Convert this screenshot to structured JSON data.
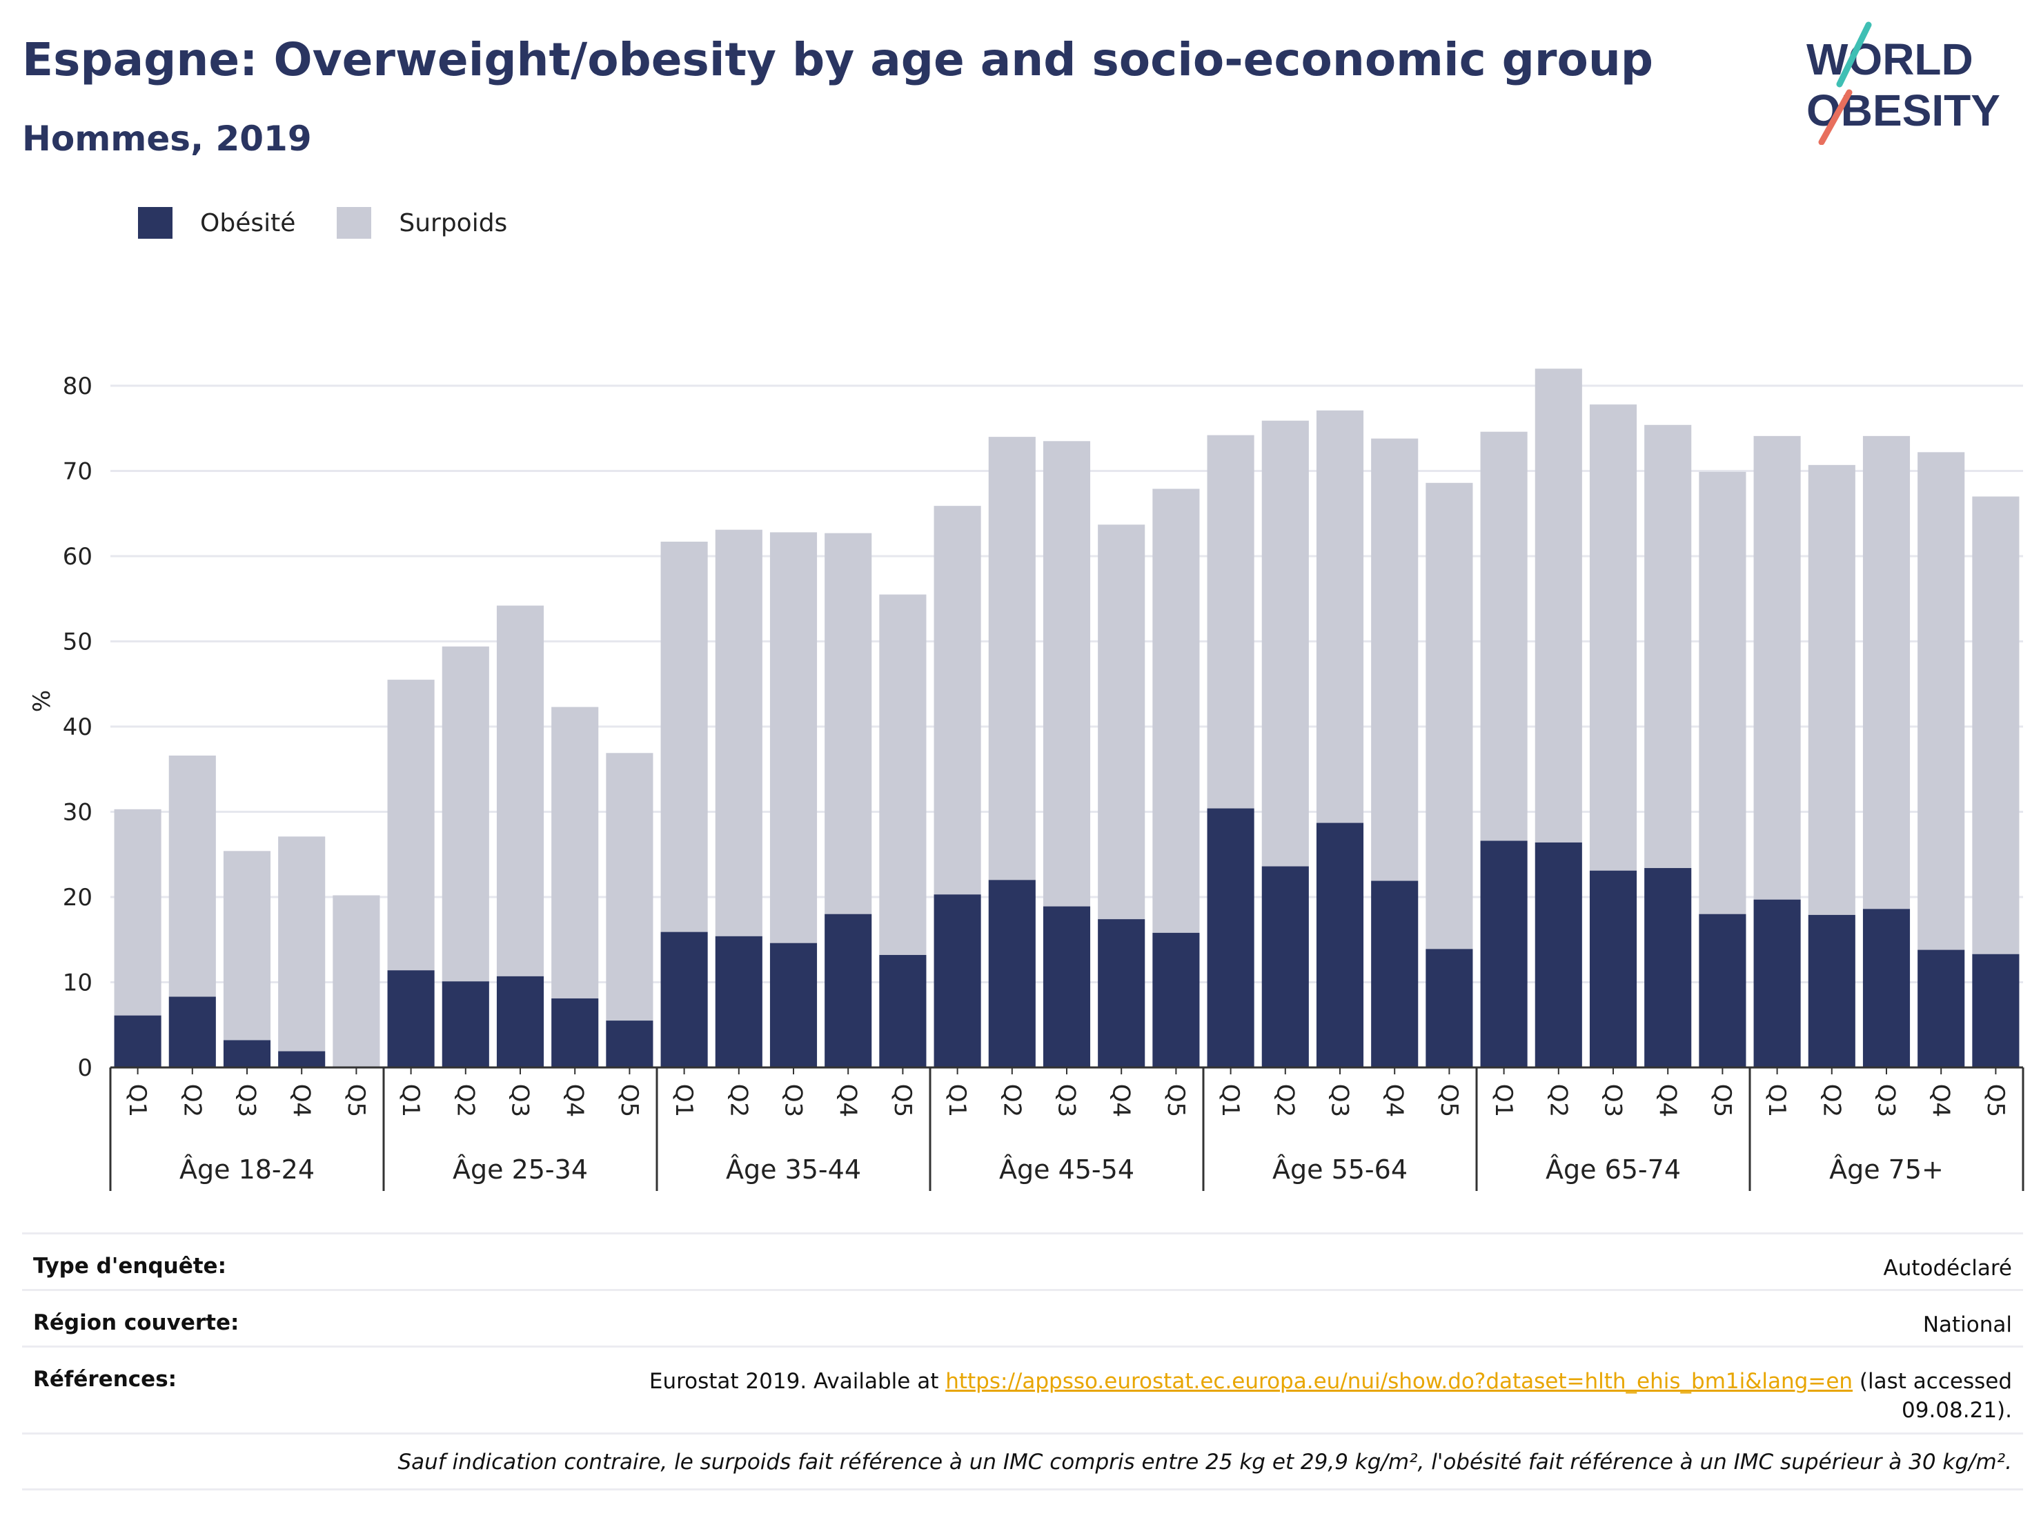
{
  "header": {
    "title": "Espagne: Overweight/obesity by age and socio-economic group",
    "subtitle": "Hommes, 2019"
  },
  "logo": {
    "line1": "WORLD",
    "line2": "OBESITY"
  },
  "colors": {
    "obesity": "#2a3561",
    "overweight": "#c9cbd6",
    "grid": "#e6e7ee",
    "axis": "#333333",
    "link": "#e8a500"
  },
  "chart_data": {
    "type": "bar",
    "stacked": true,
    "ylabel": "%",
    "ylim": [
      0,
      85
    ],
    "yticks": [
      0,
      10,
      20,
      30,
      40,
      50,
      60,
      70,
      80
    ],
    "grid": true,
    "legend_position": "top-left",
    "groups": [
      "Âge 18-24",
      "Âge 25-34",
      "Âge 35-44",
      "Âge 45-54",
      "Âge 55-64",
      "Âge 65-74",
      "Âge 75+"
    ],
    "quintiles": [
      "Q1",
      "Q2",
      "Q3",
      "Q4",
      "Q5"
    ],
    "series": [
      {
        "name": "Obésité",
        "values": [
          6.1,
          8.3,
          3.2,
          1.9,
          0,
          11.4,
          10.1,
          10.7,
          8.1,
          5.5,
          15.9,
          15.4,
          14.6,
          18.0,
          13.2,
          20.3,
          22.0,
          18.9,
          17.4,
          15.8,
          30.4,
          23.6,
          28.7,
          21.9,
          13.9,
          26.6,
          26.4,
          23.1,
          23.4,
          18.0,
          19.7,
          17.9,
          18.6,
          13.8,
          13.3
        ]
      },
      {
        "name": "Surpoids",
        "values": [
          24.2,
          28.3,
          22.2,
          25.2,
          20.2,
          34.1,
          39.3,
          43.5,
          34.2,
          31.4,
          45.8,
          47.7,
          48.2,
          44.7,
          42.3,
          45.6,
          52.0,
          54.6,
          46.3,
          52.1,
          43.8,
          52.3,
          48.4,
          51.9,
          54.7,
          48.0,
          55.6,
          54.7,
          52.0,
          51.9,
          54.4,
          52.8,
          55.5,
          58.4,
          53.7
        ]
      }
    ]
  },
  "meta": {
    "survey_type_label": "Type d'enquête:",
    "survey_type_value": "Autodéclaré",
    "region_label": "Région couverte:",
    "region_value": "National",
    "references_label": "Références:",
    "references_prefix": "Eurostat 2019. Available at",
    "references_link": "https://appsso.eurostat.ec.europa.eu/nui/show.do?dataset=hlth_ehis_bm1i&lang=en",
    "references_suffix": "(last accessed 09.08.21).",
    "note": "Sauf indication contraire, le surpoids fait référence à un IMC compris entre 25 kg et 29,9 kg/m², l'obésité fait référence à un IMC supérieur à 30 kg/m²."
  }
}
